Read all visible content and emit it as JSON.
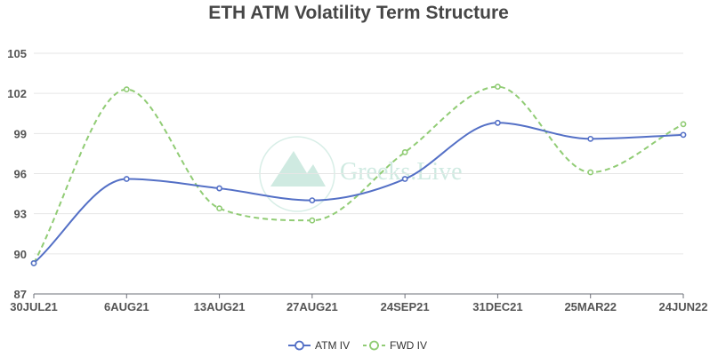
{
  "chart_data": {
    "type": "line",
    "title": "ETH ATM Volatility Term Structure",
    "xlabel": "",
    "ylabel": "",
    "categories": [
      "30JUL21",
      "6AUG21",
      "13AUG21",
      "27AUG21",
      "24SEP21",
      "31DEC21",
      "25MAR22",
      "24JUN22"
    ],
    "ylim": [
      87,
      105
    ],
    "yticks": [
      87,
      90,
      93,
      96,
      99,
      102,
      105
    ],
    "grid": "horizontal",
    "legend": "bottom-center",
    "series": [
      {
        "name": "ATM IV",
        "color": "#5470c6",
        "dashed": false,
        "values": [
          89.3,
          95.6,
          94.9,
          94.0,
          95.6,
          99.8,
          98.6,
          98.9
        ]
      },
      {
        "name": "FWD IV",
        "color": "#91cc75",
        "dashed": true,
        "values": [
          89.3,
          102.3,
          93.4,
          92.5,
          97.6,
          102.5,
          96.1,
          99.7
        ]
      }
    ],
    "watermark": "Greeks.Live"
  }
}
